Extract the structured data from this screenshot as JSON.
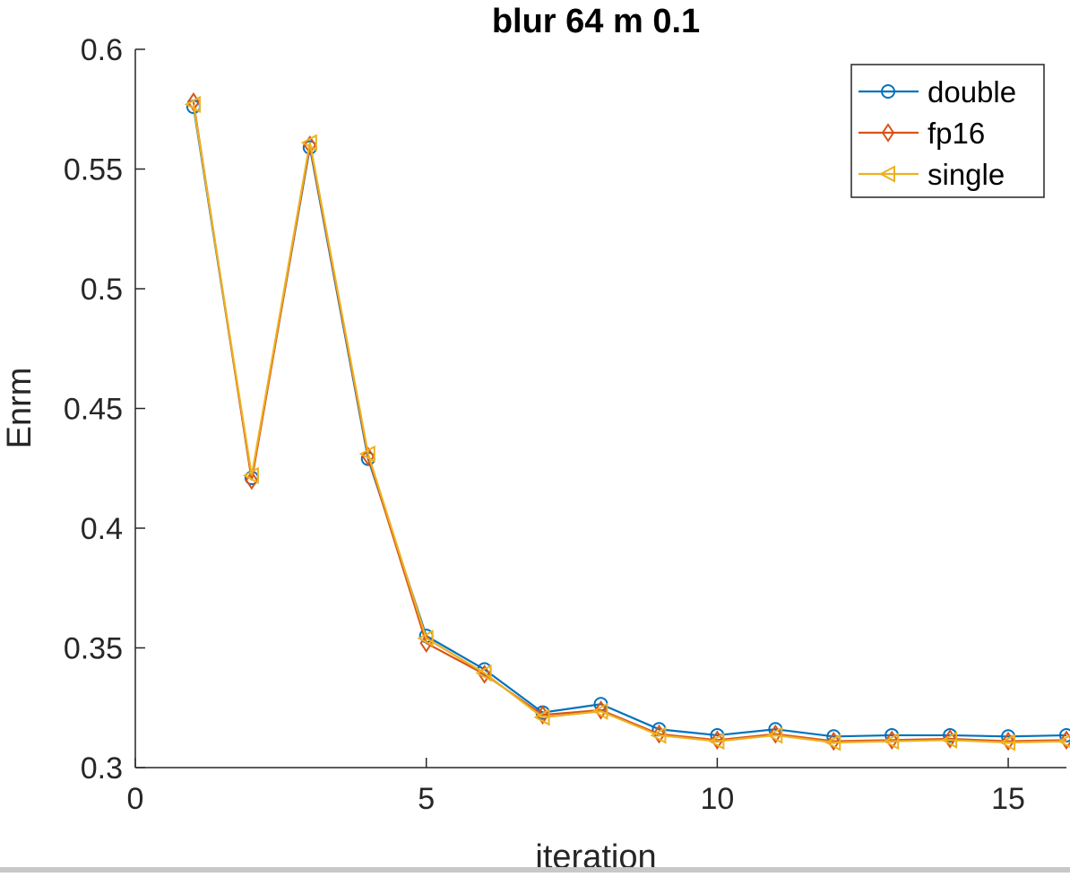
{
  "chart_data": {
    "type": "line",
    "title": "blur 64 m 0.1",
    "xlabel": "iteration",
    "ylabel": "Enrm",
    "xlim": [
      0,
      16
    ],
    "ylim": [
      0.3,
      0.6
    ],
    "xticks": [
      0,
      5,
      10,
      15
    ],
    "xtick_labels": [
      "0",
      "5",
      "10",
      "15"
    ],
    "yticks": [
      0.3,
      0.35,
      0.4,
      0.45,
      0.5,
      0.55,
      0.6
    ],
    "ytick_labels": [
      "0.3",
      "0.35",
      "0.4",
      "0.45",
      "0.5",
      "0.55",
      "0.6"
    ],
    "grid": false,
    "legend_position": "top-right",
    "x": [
      1,
      2,
      3,
      4,
      5,
      6,
      7,
      8,
      9,
      10,
      11,
      12,
      13,
      14,
      15,
      16
    ],
    "series": [
      {
        "name": "double",
        "color": "#0072BD",
        "marker": "circle",
        "values": [
          0.576,
          0.421,
          0.559,
          0.429,
          0.355,
          0.341,
          0.323,
          0.3265,
          0.316,
          0.3135,
          0.316,
          0.313,
          0.3135,
          0.3135,
          0.313,
          0.3135
        ]
      },
      {
        "name": "fp16",
        "color": "#D95319",
        "marker": "diamond",
        "values": [
          0.578,
          0.42,
          0.56,
          0.43,
          0.352,
          0.339,
          0.322,
          0.324,
          0.314,
          0.3115,
          0.314,
          0.311,
          0.3115,
          0.312,
          0.311,
          0.3115
        ]
      },
      {
        "name": "single",
        "color": "#EDB120",
        "marker": "triangle-left",
        "values": [
          0.577,
          0.422,
          0.561,
          0.431,
          0.354,
          0.3395,
          0.321,
          0.3235,
          0.3135,
          0.311,
          0.3135,
          0.3105,
          0.311,
          0.3115,
          0.3105,
          0.311
        ]
      }
    ]
  }
}
